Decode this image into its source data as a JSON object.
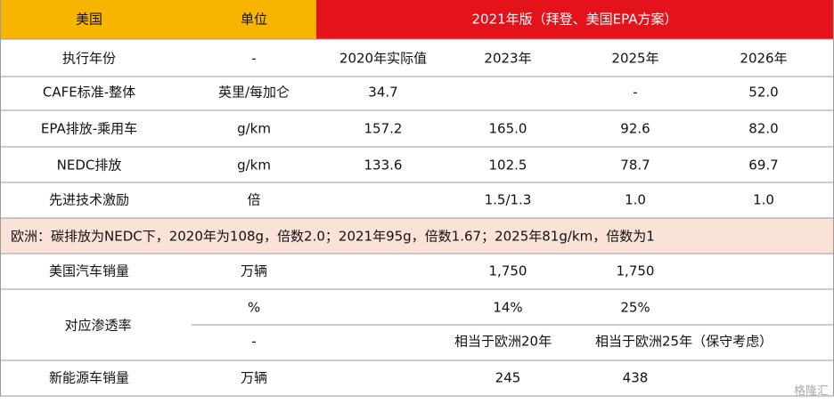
{
  "header": {
    "title": "美国",
    "unit": "单位",
    "group": "2021年版（拜登、美国EPA方案）"
  },
  "rows": [
    [
      "执行年份",
      "-",
      "2020年实际值",
      "2023年",
      "2025年",
      "2026年"
    ],
    [
      "CAFE标准-整体",
      "英里/每加仑",
      "34.7",
      null,
      "-",
      "52.0"
    ],
    [
      "EPA排放-乘用车",
      "g/km",
      "157.2",
      "165.0",
      "92.6",
      "82.0"
    ],
    [
      "NEDC排放",
      "g/km",
      "133.6",
      "102.5",
      "78.7",
      "69.7"
    ],
    [
      "先进技术激励",
      "倍",
      null,
      "1.5/1.3",
      "1.0",
      "1.0"
    ]
  ],
  "europe_note": "欧洲：碳排放为NEDC下，2020年为108g，倍数2.0；2021年95g，倍数1.67；2025年81g/km，倍数为1",
  "sales": [
    "美国汽车销量",
    "万辆",
    null,
    "1,750",
    "1,750",
    null
  ],
  "penetration": {
    "label": "对应渗透率",
    "rows": [
      [
        "%",
        null,
        "14%",
        "25%",
        null
      ],
      [
        "-",
        null,
        "相当于欧洲20年",
        "相当于欧洲25年（保守考虑）",
        null
      ]
    ]
  },
  "nev_sales": [
    "新能源车销量",
    "万辆",
    null,
    "245",
    "438",
    null
  ],
  "watermark": "格隆汇"
}
